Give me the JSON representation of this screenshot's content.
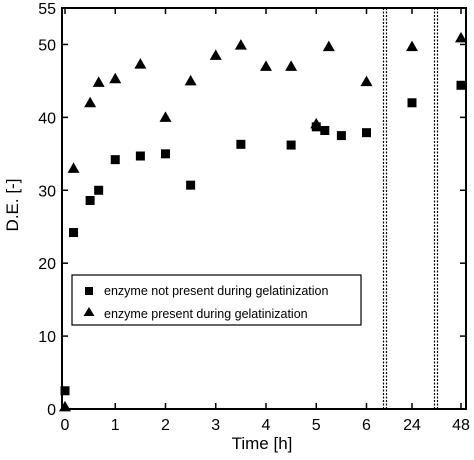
{
  "chart_data": {
    "type": "scatter",
    "title": "",
    "xlabel": "Time [h]",
    "ylabel": "D.E. [-]",
    "ylim": [
      0,
      55
    ],
    "yticks": [
      0,
      10,
      20,
      30,
      40,
      50,
      55
    ],
    "xticks": [
      "0",
      "1",
      "2",
      "3",
      "4",
      "5",
      "6",
      "24",
      "48"
    ],
    "x_axis_note": "broken axis: continuous 0-6 h, then separate panels at 24 h and 48 h",
    "grid": false,
    "legend_position": "lower-left",
    "series": [
      {
        "name": "enzyme not present during gelatinization",
        "marker": "square",
        "points": [
          {
            "x": 0,
            "y": 2.5
          },
          {
            "x": 0.17,
            "y": 24.2
          },
          {
            "x": 0.5,
            "y": 28.6
          },
          {
            "x": 0.67,
            "y": 30.0
          },
          {
            "x": 1.0,
            "y": 34.2
          },
          {
            "x": 1.5,
            "y": 34.7
          },
          {
            "x": 2.0,
            "y": 35.0
          },
          {
            "x": 2.5,
            "y": 30.7
          },
          {
            "x": 3.5,
            "y": 36.3
          },
          {
            "x": 4.5,
            "y": 36.2
          },
          {
            "x": 5.0,
            "y": 38.7
          },
          {
            "x": 5.17,
            "y": 38.2
          },
          {
            "x": 5.5,
            "y": 37.5
          },
          {
            "x": 6.0,
            "y": 37.9
          },
          {
            "x": 24,
            "y": 42.0
          },
          {
            "x": 48,
            "y": 44.4
          }
        ]
      },
      {
        "name": "enzyme present during gelatinization",
        "marker": "triangle",
        "points": [
          {
            "x": 0,
            "y": 0.3
          },
          {
            "x": 0.17,
            "y": 33.0
          },
          {
            "x": 0.5,
            "y": 42.0
          },
          {
            "x": 0.67,
            "y": 44.8
          },
          {
            "x": 1.0,
            "y": 45.3
          },
          {
            "x": 1.5,
            "y": 47.3
          },
          {
            "x": 2.0,
            "y": 40.0
          },
          {
            "x": 2.5,
            "y": 45.0
          },
          {
            "x": 3.0,
            "y": 48.5
          },
          {
            "x": 3.5,
            "y": 49.9
          },
          {
            "x": 4.0,
            "y": 47.0
          },
          {
            "x": 4.5,
            "y": 47.0
          },
          {
            "x": 5.0,
            "y": 39.1
          },
          {
            "x": 5.25,
            "y": 49.7
          },
          {
            "x": 6.0,
            "y": 44.9
          },
          {
            "x": 24,
            "y": 49.7
          },
          {
            "x": 48,
            "y": 50.9
          }
        ]
      }
    ]
  }
}
